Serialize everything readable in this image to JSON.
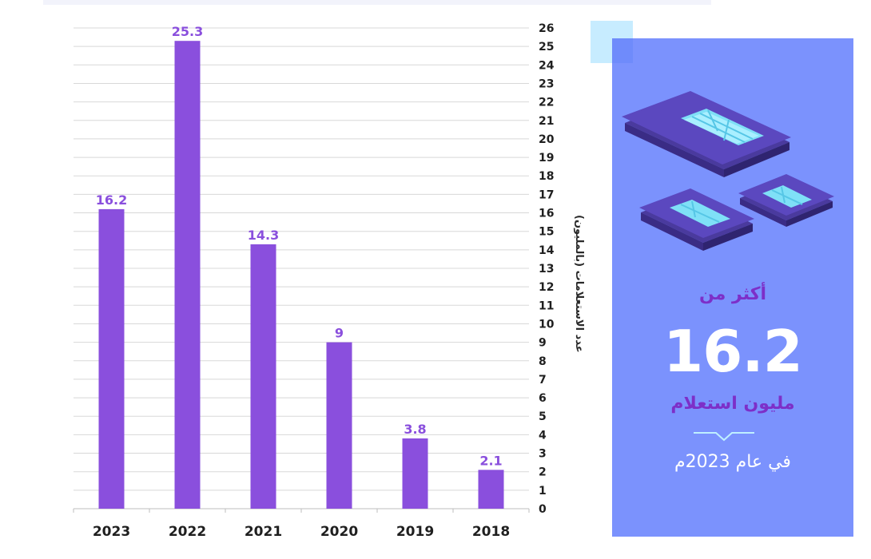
{
  "chart_data": {
    "type": "bar",
    "categories": [
      "2023",
      "2022",
      "2021",
      "2020",
      "2019",
      "2018"
    ],
    "values": [
      16.2,
      25.3,
      14.3,
      9,
      3.8,
      2.1
    ],
    "data_labels": [
      "16.2",
      "25.3",
      "14.3",
      "9",
      "3.8",
      "2.1"
    ],
    "ylabel": "عدد الاستعلامات (بالمليون)",
    "ylim": [
      0,
      26
    ],
    "yticks": [
      0,
      1,
      2,
      3,
      4,
      5,
      6,
      7,
      8,
      9,
      10,
      11,
      12,
      13,
      14,
      15,
      16,
      17,
      18,
      19,
      20,
      21,
      22,
      23,
      24,
      25,
      26
    ],
    "grid": true,
    "y_axis_position": "right",
    "bar_color": "#8a4fdd",
    "label_color": "#8a4fdd"
  },
  "panel": {
    "headline": "أكثر من",
    "number": "16.2",
    "unit": "مليون استعلام",
    "year_text": "في عام 2023م",
    "background": "#7b92fd",
    "accent": "#7d2fc8"
  },
  "icons": {
    "illustration": "sim-cards-icon"
  }
}
